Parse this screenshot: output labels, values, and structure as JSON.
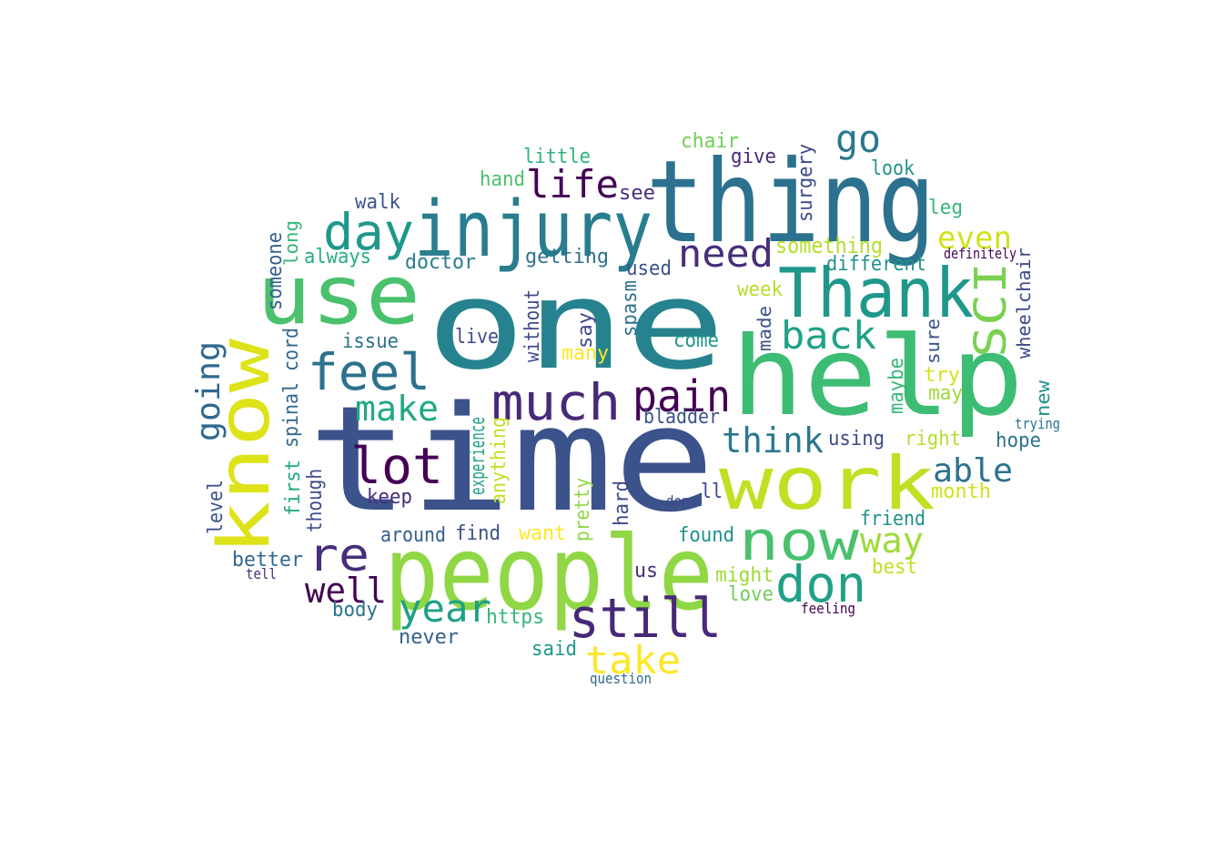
{
  "words": [
    {
      "text": "time",
      "color": "#3b528b"
    },
    {
      "text": "one",
      "color": "#26828e"
    },
    {
      "text": "help",
      "color": "#3dbc74"
    },
    {
      "text": "thing",
      "color": "#2c728e"
    },
    {
      "text": "use",
      "color": "#4ac16d"
    },
    {
      "text": "know",
      "color": "#dde318"
    },
    {
      "text": "people",
      "color": "#8fd744"
    },
    {
      "text": "work",
      "color": "#c2df23"
    },
    {
      "text": "injury",
      "color": "#287d8e"
    },
    {
      "text": "Thank",
      "color": "#1f988b"
    },
    {
      "text": "now",
      "color": "#4ac16d"
    },
    {
      "text": "don",
      "color": "#1fa187"
    },
    {
      "text": "still",
      "color": "#482878"
    },
    {
      "text": "day",
      "color": "#1f988b"
    },
    {
      "text": "much",
      "color": "#482878"
    },
    {
      "text": "feel",
      "color": "#2c728e"
    },
    {
      "text": "lot",
      "color": "#440154"
    },
    {
      "text": "pain",
      "color": "#440154"
    },
    {
      "text": "re",
      "color": "#472d7b"
    },
    {
      "text": "SCI",
      "color": "#7ad151"
    },
    {
      "text": "life",
      "color": "#440154"
    },
    {
      "text": "need",
      "color": "#472d7b"
    },
    {
      "text": "back",
      "color": "#1fa187"
    },
    {
      "text": "go",
      "color": "#2a788e"
    },
    {
      "text": "year",
      "color": "#1fa187"
    },
    {
      "text": "take",
      "color": "#fde725"
    },
    {
      "text": "think",
      "color": "#2a788e"
    },
    {
      "text": "make",
      "color": "#22a884"
    },
    {
      "text": "way",
      "color": "#a0da39"
    },
    {
      "text": "able",
      "color": "#2c728e"
    },
    {
      "text": "going",
      "color": "#31688e"
    },
    {
      "text": "well",
      "color": "#440154"
    },
    {
      "text": "even",
      "color": "#d2e21b"
    },
    {
      "text": "something",
      "color": "#b5de2b"
    },
    {
      "text": "different",
      "color": "#20928c"
    },
    {
      "text": "chair",
      "color": "#6ece58"
    },
    {
      "text": "little",
      "color": "#2eb37c"
    },
    {
      "text": "give",
      "color": "#482878"
    },
    {
      "text": "surgery",
      "color": "#3e4a89"
    },
    {
      "text": "look",
      "color": "#21918c"
    },
    {
      "text": "hand",
      "color": "#4ac16d"
    },
    {
      "text": "see",
      "color": "#472d7b"
    },
    {
      "text": "walk",
      "color": "#3b528b"
    },
    {
      "text": "leg",
      "color": "#35b779"
    },
    {
      "text": "someone",
      "color": "#355f8d"
    },
    {
      "text": "long",
      "color": "#35b779"
    },
    {
      "text": "always",
      "color": "#27ad81"
    },
    {
      "text": "doctor",
      "color": "#287d8e"
    },
    {
      "text": "getting",
      "color": "#2c728e"
    },
    {
      "text": "used",
      "color": "#3b528b"
    },
    {
      "text": "definitely",
      "color": "#440154"
    },
    {
      "text": "week",
      "color": "#b5de2b"
    },
    {
      "text": "wheelchair",
      "color": "#3e4a89"
    },
    {
      "text": "spasm",
      "color": "#2c728e"
    },
    {
      "text": "made",
      "color": "#3b528b"
    },
    {
      "text": "sure",
      "color": "#3b528b"
    },
    {
      "text": "spinal cord",
      "color": "#31688e"
    },
    {
      "text": "issue",
      "color": "#2c728e"
    },
    {
      "text": "without",
      "color": "#3e4a89"
    },
    {
      "text": "live",
      "color": "#3e4a89"
    },
    {
      "text": "say",
      "color": "#3e4a89"
    },
    {
      "text": "come",
      "color": "#1f988b"
    },
    {
      "text": "many",
      "color": "#fde725"
    },
    {
      "text": "maybe",
      "color": "#35b779"
    },
    {
      "text": "try",
      "color": "#d2e21b"
    },
    {
      "text": "may",
      "color": "#a0da39"
    },
    {
      "text": "new",
      "color": "#21918c"
    },
    {
      "text": "trying",
      "color": "#2c728e"
    },
    {
      "text": "bladder",
      "color": "#3b528b"
    },
    {
      "text": "experience",
      "color": "#1fa187"
    },
    {
      "text": "anything",
      "color": "#c2df23"
    },
    {
      "text": "using",
      "color": "#3e4a89"
    },
    {
      "text": "right",
      "color": "#b5de2b"
    },
    {
      "text": "hope",
      "color": "#2c728e"
    },
    {
      "text": "first",
      "color": "#22a884"
    },
    {
      "text": "though",
      "color": "#3e4a89"
    },
    {
      "text": "level",
      "color": "#3b528b"
    },
    {
      "text": "keep",
      "color": "#472d7b"
    },
    {
      "text": "pretty",
      "color": "#8fd744"
    },
    {
      "text": "hard",
      "color": "#3e4a89"
    },
    {
      "text": "done",
      "color": "#3e4a89"
    },
    {
      "text": "ll",
      "color": "#3e4a89"
    },
    {
      "text": "month",
      "color": "#d2e21b"
    },
    {
      "text": "friend",
      "color": "#21918c"
    },
    {
      "text": "around",
      "color": "#355f8d"
    },
    {
      "text": "find",
      "color": "#3b528b"
    },
    {
      "text": "want",
      "color": "#fde725"
    },
    {
      "text": "found",
      "color": "#21918c"
    },
    {
      "text": "better",
      "color": "#31688e"
    },
    {
      "text": "tell",
      "color": "#472d7b"
    },
    {
      "text": "best",
      "color": "#c2df23"
    },
    {
      "text": "us",
      "color": "#472d7b"
    },
    {
      "text": "might",
      "color": "#a0da39"
    },
    {
      "text": "love",
      "color": "#6ece58"
    },
    {
      "text": "body",
      "color": "#2c728e"
    },
    {
      "text": "https",
      "color": "#35b779"
    },
    {
      "text": "feeling",
      "color": "#440154"
    },
    {
      "text": "never",
      "color": "#355f8d"
    },
    {
      "text": "said",
      "color": "#1f988b"
    },
    {
      "text": "question",
      "color": "#31688e"
    }
  ]
}
